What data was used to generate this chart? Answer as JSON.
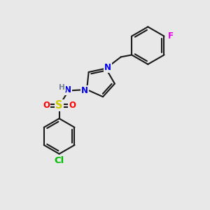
{
  "bg_color": "#e8e8e8",
  "bond_color": "#1a1a1a",
  "bond_width": 1.5,
  "atom_colors": {
    "N": "#0000ee",
    "O": "#ff0000",
    "S": "#cccc00",
    "Cl": "#00bb00",
    "F": "#ee00ee",
    "H": "#708090",
    "C": "#1a1a1a"
  },
  "font_size": 8.5,
  "xlim": [
    0,
    10
  ],
  "ylim": [
    0,
    10
  ]
}
